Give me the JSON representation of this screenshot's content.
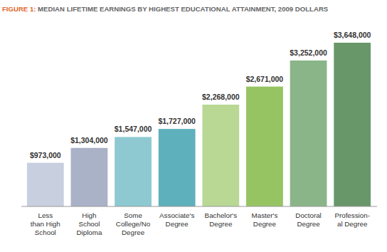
{
  "chart_data": {
    "type": "bar",
    "title": "FIGURE 1: MEDIAN LIFETIME EARNINGS BY HIGHEST EDUCATIONAL ATTAINMENT, 2009 DOLLARS",
    "categories": [
      "Less\nthan High\nSchool",
      "High\nSchool\nDiploma",
      "Some\nCollege/No\nDegree",
      "Associate's\nDegree",
      "Bachelor's\nDegree",
      "Master's\nDegree",
      "Doctoral\nDegree",
      "Profession-\nal Degree"
    ],
    "values": [
      973000,
      1304000,
      1547000,
      1727000,
      2268000,
      2671000,
      3252000,
      3648000
    ],
    "value_labels": [
      "$973,000",
      "$1,304,000",
      "$1,547,000",
      "$1,727,000",
      "$2,268,000",
      "$2,671,000",
      "$3,252,000",
      "$3,648,000"
    ],
    "colors": [
      "#c8cfdf",
      "#aab2c8",
      "#8ec9d2",
      "#5eb0bc",
      "#b8d894",
      "#96c463",
      "#8ab589",
      "#68976a"
    ],
    "ylim": [
      0,
      3648000
    ],
    "data_labels": true,
    "tick_labels": "x",
    "grid": false
  }
}
